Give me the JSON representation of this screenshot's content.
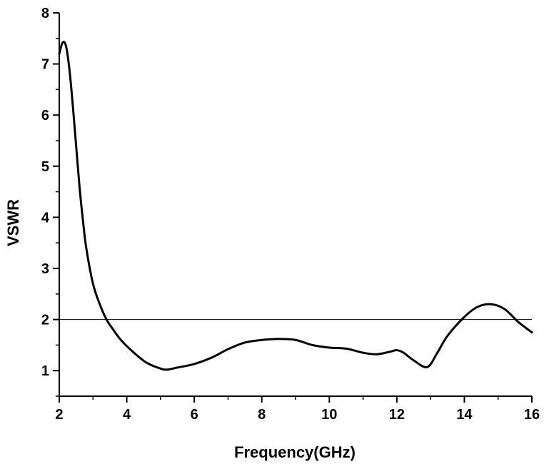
{
  "chart_data": {
    "type": "line",
    "xlabel": "Frequency(GHz)",
    "ylabel": "VSWR",
    "xlim": [
      2,
      16
    ],
    "ylim": [
      0.5,
      8
    ],
    "x_ticks": [
      2,
      4,
      6,
      8,
      10,
      12,
      14,
      16
    ],
    "y_ticks": [
      1,
      2,
      3,
      4,
      5,
      6,
      7,
      8
    ],
    "grid": false,
    "reference_lines": [
      {
        "orientation": "horizontal",
        "y": 2.0
      }
    ],
    "series": [
      {
        "color": "#000000",
        "x": [
          2.0,
          2.1,
          2.2,
          2.3,
          2.4,
          2.5,
          2.6,
          2.7,
          2.8,
          3.0,
          3.2,
          3.4,
          3.6,
          3.8,
          4.0,
          4.3,
          4.6,
          5.0,
          5.2,
          5.5,
          6.0,
          6.5,
          7.0,
          7.5,
          8.0,
          8.5,
          9.0,
          9.5,
          10.0,
          10.5,
          11.0,
          11.4,
          11.8,
          12.0,
          12.2,
          12.5,
          12.9,
          13.2,
          13.5,
          14.0,
          14.4,
          14.8,
          15.2,
          15.6,
          16.0
        ],
        "y": [
          7.2,
          7.42,
          7.35,
          6.9,
          6.2,
          5.4,
          4.6,
          3.95,
          3.4,
          2.7,
          2.3,
          2.0,
          1.8,
          1.62,
          1.48,
          1.3,
          1.15,
          1.04,
          1.02,
          1.06,
          1.13,
          1.25,
          1.42,
          1.55,
          1.6,
          1.62,
          1.6,
          1.5,
          1.45,
          1.43,
          1.35,
          1.32,
          1.37,
          1.4,
          1.35,
          1.2,
          1.07,
          1.35,
          1.68,
          2.05,
          2.25,
          2.3,
          2.2,
          1.95,
          1.75
        ]
      }
    ]
  }
}
